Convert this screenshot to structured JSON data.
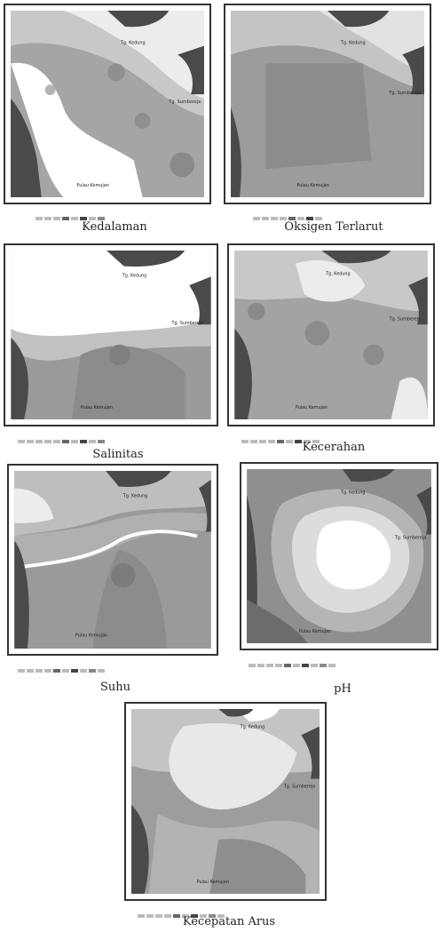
{
  "maps": [
    {
      "id": "kedalaman",
      "caption": "Kedalaman"
    },
    {
      "id": "oksigen",
      "caption": "Oksigen Terlarut"
    },
    {
      "id": "salinitas",
      "caption": "Salinitas"
    },
    {
      "id": "kecerahan",
      "caption": "Kecerahan"
    },
    {
      "id": "suhu",
      "caption": "Suhu"
    },
    {
      "id": "ph",
      "caption": "pH"
    },
    {
      "id": "arus",
      "caption": "Kecepatan Arus"
    }
  ],
  "place_labels": {
    "north": "Tg. Kedung",
    "east": "Tg. Sumbereja",
    "south": "Pulau Kemujan"
  },
  "colors": {
    "land": "#4a4a4a",
    "deep": "#777777",
    "mid": "#a9a9a9",
    "light": "#d2d2d2",
    "pale": "#f4f4f4"
  }
}
